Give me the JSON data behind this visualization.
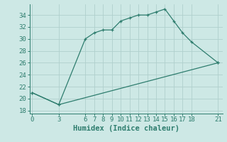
{
  "xlabel": "Humidex (Indice chaleur)",
  "bg_color": "#cde8e5",
  "grid_color": "#b0d0cd",
  "line_color": "#2e7d6e",
  "line1_x": [
    0,
    3,
    6,
    7,
    8,
    9,
    10,
    11,
    12,
    13,
    14,
    15,
    16,
    17,
    18,
    21
  ],
  "line1_y": [
    21,
    19,
    30,
    31,
    31.5,
    31.5,
    33,
    33.5,
    34,
    34,
    34.5,
    35,
    33,
    31,
    29.5,
    26
  ],
  "line2_x": [
    0,
    3,
    21
  ],
  "line2_y": [
    21,
    19,
    26
  ],
  "xlim": [
    -0.3,
    21.5
  ],
  "ylim": [
    17.5,
    35.8
  ],
  "xticks": [
    0,
    3,
    6,
    7,
    8,
    9,
    10,
    11,
    12,
    13,
    14,
    15,
    16,
    17,
    18,
    21
  ],
  "yticks": [
    18,
    20,
    22,
    24,
    26,
    28,
    30,
    32,
    34
  ],
  "tick_fontsize": 6.5,
  "xlabel_fontsize": 7.5
}
